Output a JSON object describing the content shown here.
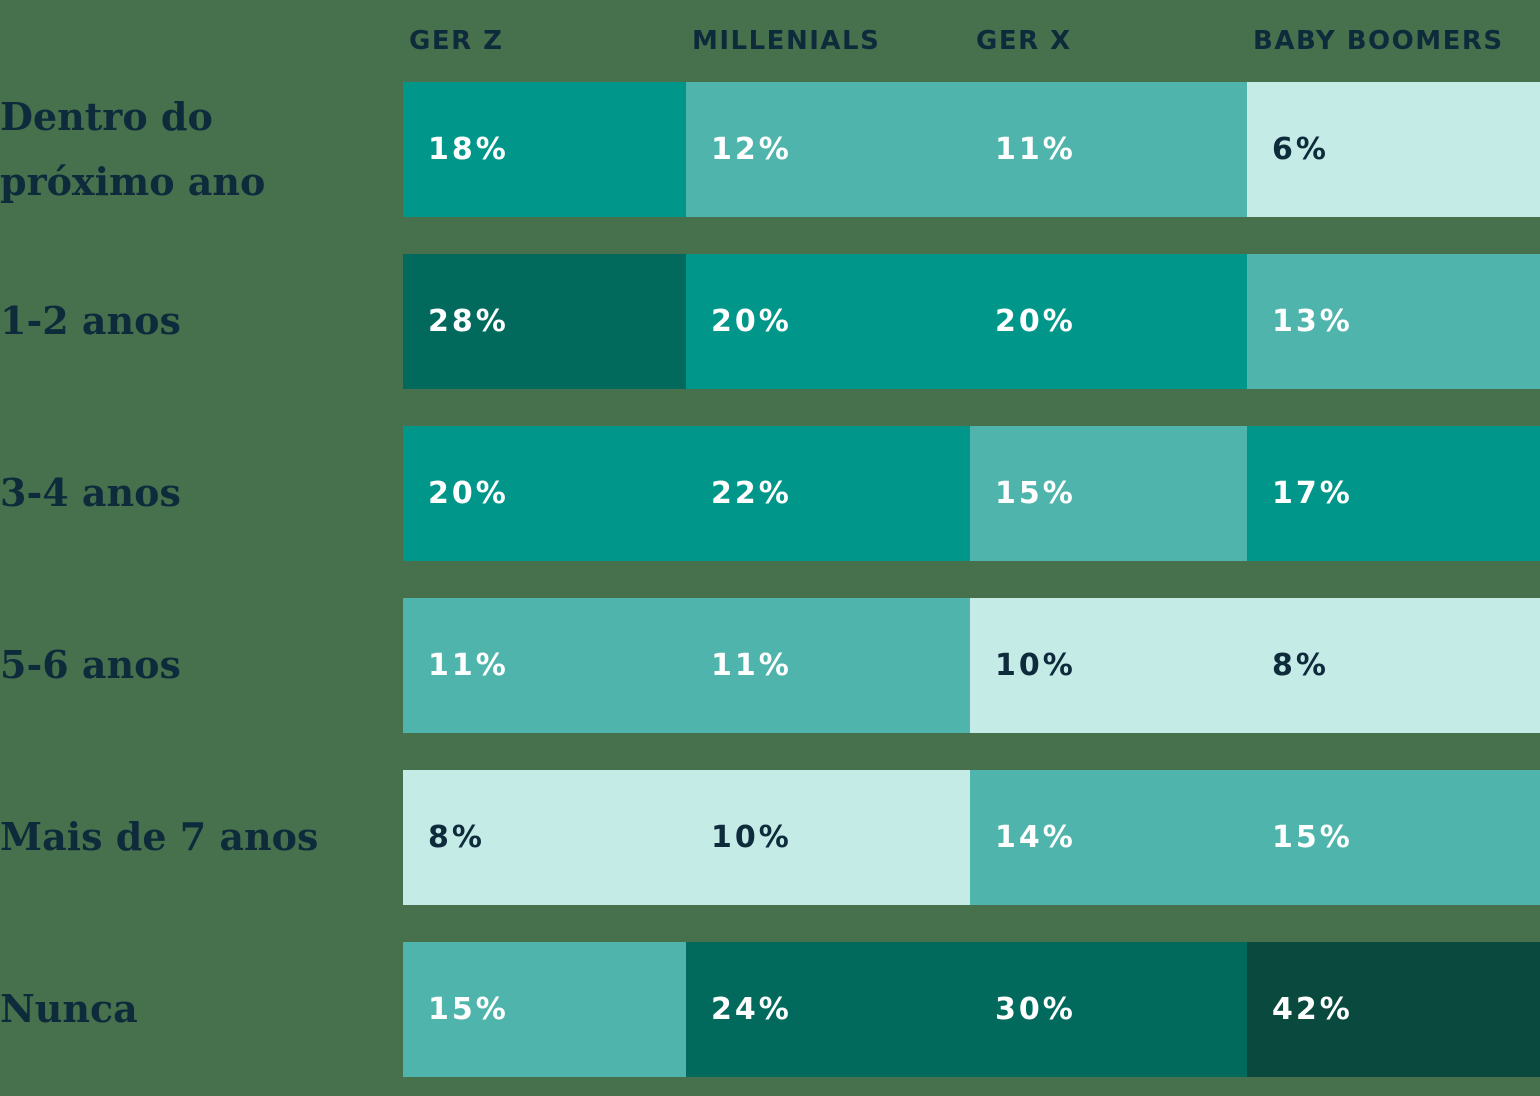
{
  "page": {
    "background_color": "#47704d"
  },
  "palette": {
    "darkest": "#0a493d",
    "dark": "#016a5c",
    "base": "#00968a",
    "mid": "#4fb4ab",
    "light": "#c5ebe6",
    "text_dark_navy": "#0e2b3c",
    "text_white": "#ffffff"
  },
  "chart": {
    "columns": [
      "GER Z",
      "MILLENIALS",
      "GER X",
      "BABY BOOMERS"
    ],
    "rows": [
      {
        "label": "Dentro do próximo ano",
        "cells": [
          {
            "label": "18%",
            "tone": "base"
          },
          {
            "label": "12%",
            "tone": "mid"
          },
          {
            "label": "11%",
            "tone": "mid"
          },
          {
            "label": "6%",
            "tone": "light"
          }
        ]
      },
      {
        "label": "1-2 anos",
        "cells": [
          {
            "label": "28%",
            "tone": "dark"
          },
          {
            "label": "20%",
            "tone": "base"
          },
          {
            "label": "20%",
            "tone": "base"
          },
          {
            "label": "13%",
            "tone": "mid"
          }
        ]
      },
      {
        "label": "3-4 anos",
        "cells": [
          {
            "label": "20%",
            "tone": "base"
          },
          {
            "label": "22%",
            "tone": "base"
          },
          {
            "label": "15%",
            "tone": "mid"
          },
          {
            "label": "17%",
            "tone": "base"
          }
        ]
      },
      {
        "label": "5-6 anos",
        "cells": [
          {
            "label": "11%",
            "tone": "mid"
          },
          {
            "label": "11%",
            "tone": "mid"
          },
          {
            "label": "10%",
            "tone": "light"
          },
          {
            "label": "8%",
            "tone": "light"
          }
        ]
      },
      {
        "label": "Mais de 7 anos",
        "cells": [
          {
            "label": "8%",
            "tone": "light"
          },
          {
            "label": "10%",
            "tone": "light"
          },
          {
            "label": "14%",
            "tone": "mid"
          },
          {
            "label": "15%",
            "tone": "mid"
          }
        ]
      },
      {
        "label": "Nunca",
        "cells": [
          {
            "label": "15%",
            "tone": "mid"
          },
          {
            "label": "24%",
            "tone": "dark"
          },
          {
            "label": "30%",
            "tone": "dark"
          },
          {
            "label": "42%",
            "tone": "darkest"
          }
        ]
      }
    ]
  },
  "chart_data": {
    "type": "heatmap",
    "title": "",
    "categories": [
      "GER Z",
      "MILLENIALS",
      "GER X",
      "BABY BOOMERS"
    ],
    "row_labels": [
      "Dentro do próximo ano",
      "1-2 anos",
      "3-4 anos",
      "5-6 anos",
      "Mais de 7 anos",
      "Nunca"
    ],
    "series": [
      {
        "name": "GER Z",
        "values": [
          18,
          28,
          20,
          11,
          8,
          15
        ]
      },
      {
        "name": "MILLENIALS",
        "values": [
          12,
          20,
          22,
          11,
          10,
          24
        ]
      },
      {
        "name": "GER X",
        "values": [
          11,
          20,
          15,
          10,
          14,
          30
        ]
      },
      {
        "name": "BABY BOOMERS",
        "values": [
          6,
          13,
          17,
          8,
          15,
          42
        ]
      }
    ],
    "unit": "%",
    "legend": "none",
    "grid": "off",
    "color_mapping": "darker teal = higher percentage, lightest = lowest"
  }
}
